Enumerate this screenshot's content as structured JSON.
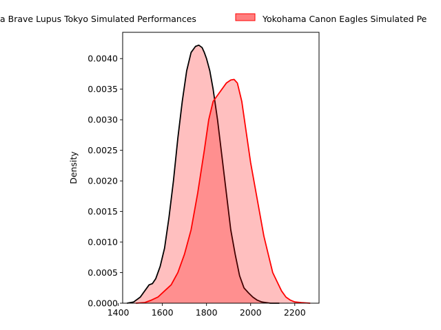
{
  "chart_data": {
    "type": "area",
    "subtype": "kde-density",
    "xlabel": "",
    "ylabel": "Density",
    "xlim": [
      1420,
      2310
    ],
    "ylim": [
      0,
      0.00443
    ],
    "x_ticks": [
      1400,
      1600,
      1800,
      2000,
      2200
    ],
    "y_ticks": [
      0.0,
      0.0005,
      0.001,
      0.0015,
      0.002,
      0.0025,
      0.003,
      0.0035,
      0.004
    ],
    "x_tick_labels": [
      "1400",
      "1600",
      "1800",
      "2000",
      "2200"
    ],
    "y_tick_labels": [
      "0.0000",
      "0.0005",
      "0.0010",
      "0.0015",
      "0.0020",
      "0.0025",
      "0.0030",
      "0.0035",
      "0.0040"
    ],
    "grid": false,
    "legend_position": "top (outside, clipped)",
    "legend": [
      {
        "label": "Kubota Spears Funabashi Tokyo Bay / Toshiba Brave Lupus Tokyo Simulated Performances",
        "visible_text": "a Brave Lupus Tokyo Simulated Performances"
      },
      {
        "label": "Yokohama Canon Eagles Simulated Performances",
        "visible_text": "Yokohama Canon Eagles Simulated Pe"
      }
    ],
    "series": [
      {
        "name": "Brave Lupus Tokyo Simulated Performances",
        "line_color": "#000000",
        "fill_color": "#ff0000",
        "fill_alpha": 0.25,
        "x": [
          1440,
          1470,
          1500,
          1520,
          1540,
          1555,
          1570,
          1590,
          1610,
          1630,
          1650,
          1670,
          1690,
          1710,
          1730,
          1750,
          1765,
          1780,
          1790,
          1800,
          1815,
          1830,
          1850,
          1870,
          1890,
          1910,
          1930,
          1950,
          1970,
          1990,
          2010,
          2030,
          2050,
          2070,
          2090,
          2110,
          2130
        ],
        "y": [
          0.0,
          2e-05,
          0.0001,
          0.0002,
          0.0003,
          0.00032,
          0.0004,
          0.0006,
          0.0009,
          0.0014,
          0.002,
          0.0027,
          0.0033,
          0.0038,
          0.0041,
          0.0042,
          0.00422,
          0.00418,
          0.0041,
          0.004,
          0.0038,
          0.0035,
          0.003,
          0.0024,
          0.0018,
          0.0012,
          0.0008,
          0.00045,
          0.00025,
          0.00017,
          0.0001,
          5e-05,
          2e-05,
          1e-05,
          0.0,
          0.0,
          0.0
        ]
      },
      {
        "name": "Yokohama Canon Eagles Simulated Performances",
        "line_color": "#ff0000",
        "fill_color": "#ff0000",
        "fill_alpha": 0.25,
        "x": [
          1480,
          1520,
          1550,
          1580,
          1610,
          1640,
          1670,
          1700,
          1730,
          1760,
          1790,
          1810,
          1830,
          1850,
          1870,
          1890,
          1910,
          1925,
          1940,
          1960,
          1980,
          2000,
          2020,
          2040,
          2060,
          2080,
          2100,
          2120,
          2140,
          2160,
          2180,
          2200,
          2230,
          2270
        ],
        "y": [
          0.0,
          1e-05,
          5e-05,
          0.0001,
          0.0002,
          0.0003,
          0.0005,
          0.0008,
          0.0012,
          0.0018,
          0.0025,
          0.003,
          0.0033,
          0.0034,
          0.0035,
          0.0036,
          0.00365,
          0.00366,
          0.0036,
          0.0033,
          0.0028,
          0.0023,
          0.0019,
          0.0015,
          0.0011,
          0.0008,
          0.0005,
          0.00035,
          0.0002,
          0.0001,
          5e-05,
          2e-05,
          1e-05,
          0.0
        ]
      }
    ]
  }
}
